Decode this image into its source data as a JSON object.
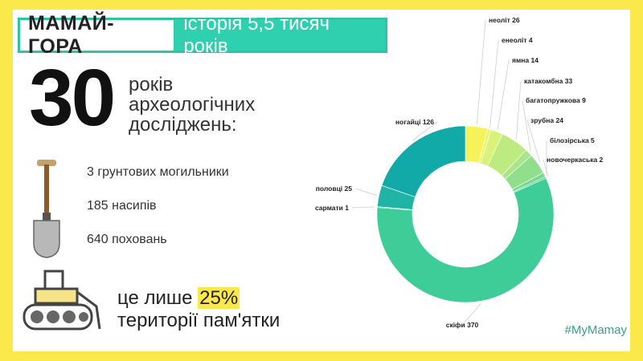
{
  "header": {
    "title": "МАМАЙ-ГОРА",
    "subtitle": "історія 5,5 тисяч років"
  },
  "intro": {
    "big_number": "30",
    "line1": "років",
    "line2": "археологічних",
    "line3": "досліджень:"
  },
  "stats": {
    "graves": "3 грунтових могильники",
    "mounds": "185 насипів",
    "burials": "640 поховань"
  },
  "footnote": {
    "line1_prefix": "це лише ",
    "line1_highlight": "25%",
    "line2": "території пам'ятки"
  },
  "hashtag": "#MyMamay",
  "colors": {
    "background": "#fbe84a",
    "accent": "#2fd0b0",
    "text": "#222222"
  },
  "icons": [
    "shovel-icon",
    "bulldozer-icon"
  ],
  "chart_data": {
    "type": "pie",
    "donut": true,
    "title": "",
    "categories": [
      "неоліт",
      "енеоліт",
      "ямна",
      "катакомбна",
      "багатопружкова",
      "зрубна",
      "білозірська",
      "новочеркаська",
      "скіфи",
      "сармати",
      "половці",
      "ногайці"
    ],
    "values": [
      26,
      4,
      14,
      33,
      9,
      24,
      5,
      2,
      370,
      1,
      25,
      126
    ],
    "colors": [
      "#f6f25a",
      "#eef46a",
      "#d8f27a",
      "#bdeb80",
      "#a9e58a",
      "#8fdf8c",
      "#77d98e",
      "#5fd392",
      "#3ecc98",
      "#30bfa0",
      "#1fb4a6",
      "#12aaa8"
    ]
  }
}
